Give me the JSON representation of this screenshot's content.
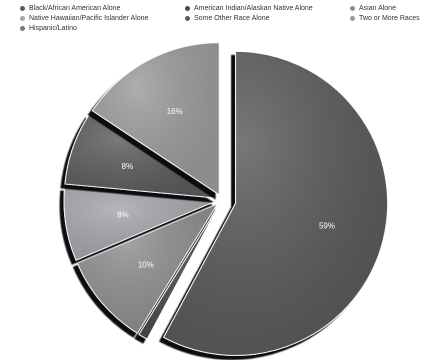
{
  "chart_data": {
    "type": "pie",
    "categories": [
      "Black/African American Alone",
      "American Indian/Alaskan Native Alone",
      "Asian Alone",
      "Native Hawaiian/Pacific Islander Alone",
      "Some Other Race Alone",
      "Two or More Races",
      "Hispanic/Latino"
    ],
    "values": [
      59,
      1,
      10,
      8,
      8,
      16,
      0
    ],
    "labels": [
      "59%",
      "",
      "10%",
      "8%",
      "8%",
      "16%",
      ""
    ],
    "colors": [
      "#5a5a5a",
      "#4a4a4a",
      "#8e8e8e",
      "#a5a6ac",
      "#5c5c5c",
      "#9b9b9b",
      "#777777"
    ],
    "legend_position": "top",
    "start_angle": 0,
    "direction": "clockwise"
  }
}
